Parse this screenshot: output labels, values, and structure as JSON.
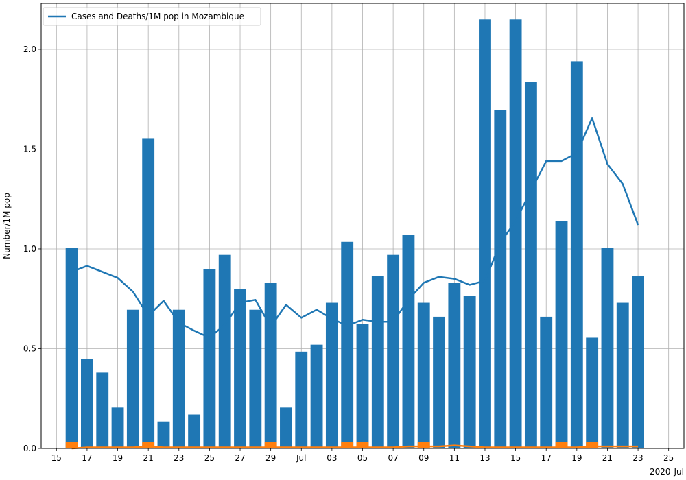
{
  "chart_data": {
    "type": "bar",
    "ylabel": "Number/1M pop",
    "xlabel_offset": "2020-Jul",
    "ylim": [
      0,
      2.23
    ],
    "grid": true,
    "legend": {
      "position": "top-left",
      "entries": [
        "Cases and Deaths/1M pop in Mozambique"
      ]
    },
    "x_dates": [
      "2020-06-16",
      "2020-06-17",
      "2020-06-18",
      "2020-06-19",
      "2020-06-20",
      "2020-06-21",
      "2020-06-22",
      "2020-06-23",
      "2020-06-24",
      "2020-06-25",
      "2020-06-26",
      "2020-06-27",
      "2020-06-28",
      "2020-06-29",
      "2020-06-30",
      "2020-07-01",
      "2020-07-02",
      "2020-07-03",
      "2020-07-04",
      "2020-07-05",
      "2020-07-06",
      "2020-07-07",
      "2020-07-08",
      "2020-07-09",
      "2020-07-10",
      "2020-07-11",
      "2020-07-12",
      "2020-07-13",
      "2020-07-14",
      "2020-07-15",
      "2020-07-16",
      "2020-07-17",
      "2020-07-18",
      "2020-07-19",
      "2020-07-20",
      "2020-07-21",
      "2020-07-22",
      "2020-07-23"
    ],
    "series": [
      {
        "values": [
          1.005,
          0.45,
          0.38,
          0.205,
          0.695,
          1.555,
          0.135,
          0.695,
          0.17,
          0.9,
          0.97,
          0.8,
          0.695,
          0.83,
          0.205,
          0.485,
          0.52,
          0.73,
          1.035,
          0.625,
          0.865,
          0.97,
          1.07,
          0.73,
          0.66,
          0.83,
          0.765,
          2.15,
          1.695,
          2.15,
          1.835,
          0.66,
          1.14,
          1.94,
          0.555,
          1.005,
          0.73,
          0.865
        ]
      },
      {
        "values": [
          0.034,
          0.0,
          0.0,
          0.0,
          0.0,
          0.034,
          0.0,
          0.0,
          0.0,
          0.0,
          0.0,
          0.0,
          0.0,
          0.034,
          0.0,
          0.0,
          0.0,
          0.0,
          0.034,
          0.034,
          0.0,
          0.0,
          0.0,
          0.034,
          0.0,
          0.0,
          0.0,
          0.0,
          0.0,
          0.0,
          0.0,
          0.0,
          0.034,
          0.0,
          0.034,
          0.0,
          0.0,
          0.0
        ]
      },
      {
        "values": [
          0.885,
          0.915,
          0.885,
          0.855,
          0.785,
          0.665,
          0.74,
          0.63,
          0.59,
          0.555,
          0.62,
          0.73,
          0.745,
          0.61,
          0.72,
          0.655,
          0.695,
          0.65,
          0.615,
          0.645,
          0.635,
          0.635,
          0.745,
          0.83,
          0.86,
          0.85,
          0.82,
          0.84,
          1.03,
          1.14,
          1.29,
          1.44,
          1.44,
          1.48,
          1.655,
          1.425,
          1.325,
          1.12
        ]
      },
      {
        "values": [
          0.0,
          0.005,
          0.005,
          0.005,
          0.005,
          0.01,
          0.005,
          0.005,
          0.005,
          0.005,
          0.005,
          0.005,
          0.005,
          0.005,
          0.005,
          0.005,
          0.005,
          0.005,
          0.005,
          0.005,
          0.005,
          0.005,
          0.01,
          0.01,
          0.01,
          0.015,
          0.01,
          0.005,
          0.005,
          0.005,
          0.005,
          0.005,
          0.005,
          0.005,
          0.01,
          0.01,
          0.01,
          0.01
        ]
      }
    ],
    "x_ticks": [
      {
        "date": "2020-06-15",
        "label": "15"
      },
      {
        "date": "2020-06-17",
        "label": "17"
      },
      {
        "date": "2020-06-19",
        "label": "19"
      },
      {
        "date": "2020-06-21",
        "label": "21"
      },
      {
        "date": "2020-06-23",
        "label": "23"
      },
      {
        "date": "2020-06-25",
        "label": "25"
      },
      {
        "date": "2020-06-27",
        "label": "27"
      },
      {
        "date": "2020-06-29",
        "label": "29"
      },
      {
        "date": "2020-07-01",
        "label": "Jul"
      },
      {
        "date": "2020-07-03",
        "label": "03"
      },
      {
        "date": "2020-07-05",
        "label": "05"
      },
      {
        "date": "2020-07-07",
        "label": "07"
      },
      {
        "date": "2020-07-09",
        "label": "09"
      },
      {
        "date": "2020-07-11",
        "label": "11"
      },
      {
        "date": "2020-07-13",
        "label": "13"
      },
      {
        "date": "2020-07-15",
        "label": "15"
      },
      {
        "date": "2020-07-17",
        "label": "17"
      },
      {
        "date": "2020-07-19",
        "label": "19"
      },
      {
        "date": "2020-07-21",
        "label": "21"
      },
      {
        "date": "2020-07-23",
        "label": "23"
      },
      {
        "date": "2020-07-25",
        "label": "25"
      }
    ],
    "x_range": [
      "2020-06-14",
      "2020-07-26"
    ],
    "y_ticks": [
      {
        "value": 0.0,
        "label": "0.0"
      },
      {
        "value": 0.5,
        "label": "0.5"
      },
      {
        "value": 1.0,
        "label": "1.0"
      },
      {
        "value": 1.5,
        "label": "1.5"
      },
      {
        "value": 2.0,
        "label": "2.0"
      }
    ],
    "colors": {
      "cases": "#1f77b4",
      "deaths": "#ff7f0e",
      "grid": "#b0b0b0"
    }
  }
}
